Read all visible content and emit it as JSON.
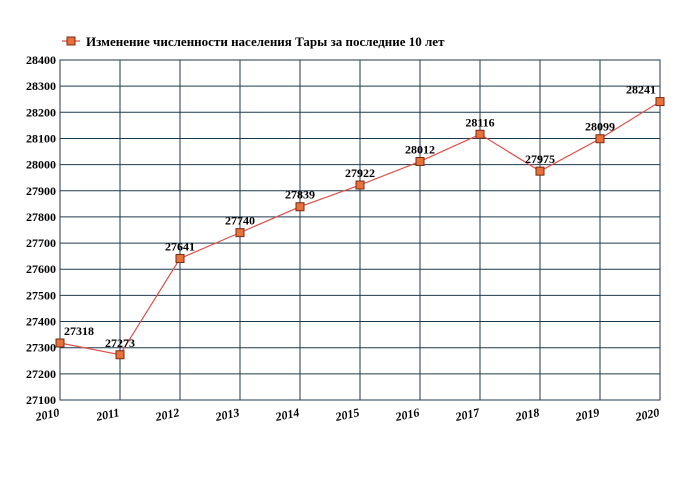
{
  "chart_data": {
    "type": "line",
    "title": "",
    "xlabel": "",
    "ylabel": "",
    "x": [
      "2010",
      "2011",
      "2012",
      "2013",
      "2014",
      "2015",
      "2016",
      "2017",
      "2018",
      "2019",
      "2020"
    ],
    "series": [
      {
        "name": "Изменение численности населения Тары за последние 10 лет",
        "values": [
          27318,
          27273,
          27641,
          27740,
          27839,
          27922,
          28012,
          28116,
          27975,
          28099,
          28241
        ],
        "color": "#e0504a",
        "marker_color": "#e8703a"
      }
    ],
    "data_labels": [
      "27318",
      "27273",
      "27641",
      "27740",
      "27839",
      "27922",
      "28012",
      "28116",
      "27975",
      "28099",
      "28241"
    ],
    "ylim": [
      27100,
      28400
    ],
    "yticks": [
      "27100",
      "27200",
      "27300",
      "27400",
      "27500",
      "27600",
      "27700",
      "27800",
      "27900",
      "28000",
      "28100",
      "28200",
      "28300",
      "28400"
    ],
    "grid": true,
    "legend_position": "top-left",
    "grid_color": "#1f3a4d"
  }
}
